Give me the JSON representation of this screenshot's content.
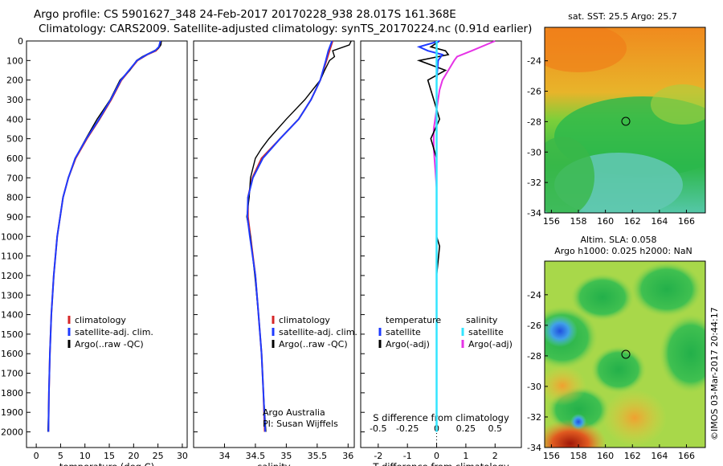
{
  "header": {
    "title_line1": "Argo profile: CS 5901627_348 24-Feb-2017 20170228_938 28.017S 161.368E",
    "title_line2": "Climatology: CARS2009. Satellite-adjusted climatology: synTS_20170224.nc (0.91d earlier)"
  },
  "credit": {
    "footer": "Argo Australia",
    "pi": "PI: Susan Wijffels",
    "side_stamp": "©IMOS 03-Mar-2017 20:44:17"
  },
  "colors": {
    "climatology": "#d62728",
    "satellite": "#1f3bff",
    "argo": "#000000",
    "sat_salinity": "#33e5ff",
    "argo_salinity_adj": "#e633e6"
  },
  "chart_data": [
    {
      "type": "line",
      "id": "temperature",
      "xlabel": "temperature (deg C)",
      "ylabel": "",
      "xlim": [
        -2,
        31
      ],
      "ylim": [
        2080,
        0
      ],
      "xticks": [
        0,
        5,
        10,
        15,
        20,
        25,
        30
      ],
      "yticks": [
        0,
        100,
        200,
        300,
        400,
        500,
        600,
        700,
        800,
        900,
        1000,
        1100,
        1200,
        1300,
        1400,
        1500,
        1600,
        1700,
        1800,
        1900,
        2000
      ],
      "legend": [
        "climatology",
        "satellite-adj. clim.",
        "Argo(..raw -QC)"
      ],
      "series": [
        {
          "name": "climatology",
          "y": [
            0,
            30,
            50,
            70,
            100,
            200,
            300,
            400,
            500,
            600,
            700,
            800,
            1000,
            1200,
            1400,
            1600,
            1800,
            2000
          ],
          "x": [
            25.6,
            25.3,
            24.6,
            22.8,
            20.8,
            17.5,
            15.4,
            13.0,
            10.4,
            8.1,
            6.6,
            5.5,
            4.3,
            3.6,
            3.1,
            2.8,
            2.6,
            2.5
          ]
        },
        {
          "name": "satellite-adj. clim.",
          "y": [
            0,
            30,
            50,
            70,
            100,
            200,
            300,
            400,
            500,
            600,
            700,
            800,
            1000,
            1200,
            1400,
            1600,
            1800,
            2000
          ],
          "x": [
            25.5,
            25.2,
            24.4,
            22.7,
            20.7,
            17.4,
            15.3,
            12.9,
            10.3,
            8.0,
            6.6,
            5.5,
            4.3,
            3.6,
            3.1,
            2.8,
            2.6,
            2.5
          ]
        },
        {
          "name": "Argo(..raw -QC)",
          "y": [
            0,
            20,
            40,
            60,
            80,
            100,
            150,
            200,
            300,
            400,
            500,
            600,
            700,
            800,
            1000,
            1200,
            1400,
            1600,
            1800,
            2000
          ],
          "x": [
            25.7,
            25.6,
            25.0,
            23.4,
            21.8,
            20.6,
            19.2,
            17.2,
            15.2,
            12.5,
            10.2,
            8.0,
            6.6,
            5.5,
            4.3,
            3.6,
            3.1,
            2.8,
            2.6,
            2.4
          ]
        }
      ]
    },
    {
      "type": "line",
      "id": "salinity",
      "xlabel": "salinity",
      "ylabel": "",
      "xlim": [
        33.5,
        36.1
      ],
      "ylim": [
        2080,
        0
      ],
      "xticks": [
        34,
        34.5,
        35,
        35.5,
        36
      ],
      "legend": [
        "climatology",
        "satellite-adj. clim.",
        "Argo(..raw -QC)"
      ],
      "series": [
        {
          "name": "climatology",
          "y": [
            0,
            50,
            100,
            200,
            300,
            400,
            500,
            600,
            700,
            800,
            900,
            1000,
            1200,
            1400,
            1600,
            1800,
            2000
          ],
          "x": [
            35.75,
            35.7,
            35.65,
            35.55,
            35.4,
            35.2,
            34.9,
            34.6,
            34.45,
            34.38,
            34.38,
            34.42,
            34.5,
            34.55,
            34.6,
            34.63,
            34.65
          ]
        },
        {
          "name": "satellite-adj. clim.",
          "y": [
            0,
            50,
            100,
            200,
            300,
            400,
            500,
            600,
            700,
            800,
            900,
            1000,
            1200,
            1400,
            1600,
            1800,
            2000
          ],
          "x": [
            35.74,
            35.68,
            35.64,
            35.55,
            35.4,
            35.2,
            34.9,
            34.62,
            34.46,
            34.38,
            34.37,
            34.41,
            34.5,
            34.55,
            34.6,
            34.63,
            34.66
          ]
        },
        {
          "name": "Argo(..raw -QC)",
          "y": [
            0,
            20,
            50,
            80,
            100,
            150,
            200,
            300,
            400,
            500,
            550,
            600,
            700,
            800,
            900,
            1000,
            1200,
            1400,
            1600,
            1800,
            2000
          ],
          "x": [
            36.05,
            36.02,
            35.75,
            35.78,
            35.7,
            35.62,
            35.55,
            35.3,
            35.0,
            34.72,
            34.6,
            34.5,
            34.42,
            34.4,
            34.36,
            34.42,
            34.49,
            34.55,
            34.6,
            34.63,
            34.67
          ]
        }
      ]
    },
    {
      "type": "line",
      "id": "differences",
      "xlabel": "T difference from climatology",
      "xlabel_top": "S difference from climatology",
      "xlim": [
        -2.6,
        2.9
      ],
      "ylim": [
        2080,
        0
      ],
      "xticks": [
        -2,
        -1,
        0,
        1,
        2
      ],
      "xticks_top": [
        -0.5,
        -0.25,
        0,
        0.25,
        0.5
      ],
      "legend_groups": [
        {
          "title": "temperature",
          "items": [
            "satellite",
            "Argo(-adj)"
          ]
        },
        {
          "title": "salinity",
          "items": [
            "satellite",
            "Argo(-adj)"
          ]
        }
      ],
      "series": [
        {
          "name": "temperature satellite",
          "y": [
            0,
            30,
            50,
            70,
            100,
            200,
            400,
            600,
            1000,
            1400,
            2000
          ],
          "x": [
            0.1,
            -0.6,
            -0.3,
            0.2,
            0.05,
            0.0,
            0.0,
            0.0,
            0.0,
            0.0,
            0.0
          ]
        },
        {
          "name": "temperature Argo(-adj)",
          "y": [
            0,
            30,
            50,
            70,
            100,
            150,
            200,
            300,
            400,
            500,
            600,
            800,
            1000,
            1050,
            1200,
            1400,
            1600,
            1800,
            2000
          ],
          "x": [
            0.1,
            -0.2,
            0.3,
            0.4,
            -0.6,
            0.3,
            -0.3,
            -0.1,
            0.1,
            -0.2,
            0.0,
            0.0,
            0.0,
            0.1,
            0.0,
            0.0,
            0.0,
            0.0,
            0.0
          ]
        },
        {
          "name": "salinity satellite",
          "y": [
            0,
            100,
            300,
            500,
            700,
            900,
            1100,
            1500,
            2000
          ],
          "x": [
            0.0,
            0.0,
            0.0,
            0.0,
            0.0,
            0.0,
            0.0,
            0.0,
            0.0
          ]
        },
        {
          "name": "salinity Argo(-adj)",
          "y": [
            0,
            50,
            80,
            100,
            150,
            200,
            250,
            350,
            450,
            550,
            650,
            750,
            850,
            950
          ],
          "x": [
            2.0,
            1.2,
            0.7,
            0.6,
            0.4,
            0.2,
            0.1,
            0.0,
            -0.1,
            -0.1,
            -0.05,
            0.0,
            0.0,
            0.0
          ]
        }
      ]
    },
    {
      "type": "heatmap",
      "id": "sst_map",
      "title": "sat. SST: 25.5  Argo: 25.7",
      "xticks": [
        156,
        158,
        160,
        162,
        164,
        166
      ],
      "yticks": [
        -24,
        -26,
        -28,
        -30,
        -32,
        -34
      ],
      "xlim": [
        155.5,
        167.4
      ],
      "ylim": [
        -34,
        -21.8
      ],
      "argo_position": {
        "lon": 161.368,
        "lat": -28.017
      }
    },
    {
      "type": "heatmap",
      "id": "sla_map",
      "title": "Altim. SLA: 0.058",
      "subtitle": "Argo h1000: 0.025 h2000: NaN",
      "xticks": [
        156,
        158,
        160,
        162,
        164,
        166
      ],
      "yticks": [
        -24,
        -26,
        -28,
        -30,
        -32,
        -34
      ],
      "xlim": [
        155.5,
        167.4
      ],
      "ylim": [
        -34,
        -21.8
      ],
      "argo_position": {
        "lon": 161.368,
        "lat": -28.017
      }
    }
  ]
}
